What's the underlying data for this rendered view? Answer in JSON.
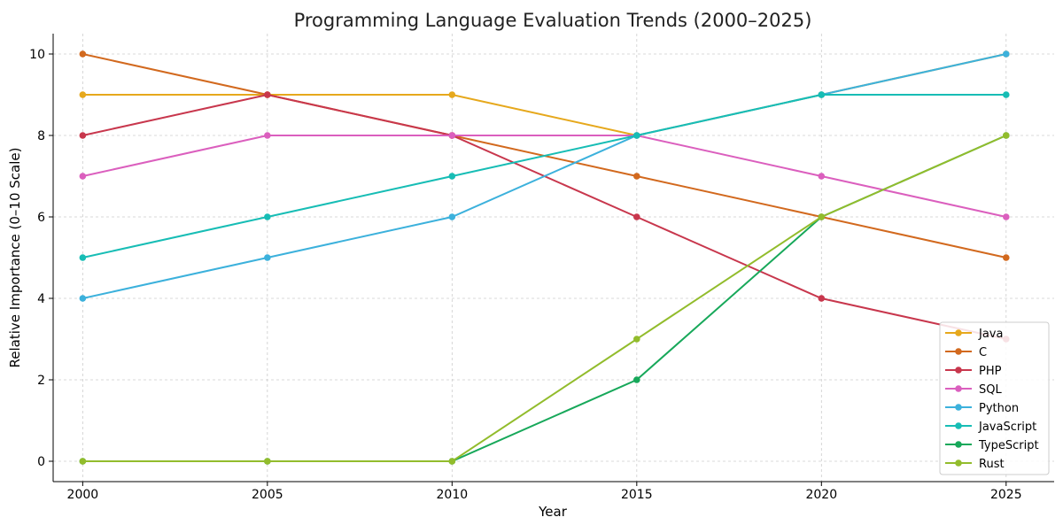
{
  "chart_data": {
    "type": "line",
    "title": "Programming Language Evaluation Trends (2000–2025)",
    "xlabel": "Year",
    "ylabel": "Relative Importance (0–10 Scale)",
    "x": [
      2000,
      2005,
      2010,
      2015,
      2020,
      2025
    ],
    "x_tick_labels": [
      "2000",
      "2005",
      "2010",
      "2015",
      "2020",
      "2025"
    ],
    "y_ticks": [
      0,
      2,
      4,
      6,
      8,
      10
    ],
    "y_tick_labels": [
      "0",
      "2",
      "4",
      "6",
      "8",
      "10"
    ],
    "xlim": [
      1999.2,
      2026.3
    ],
    "ylim": [
      -0.5,
      10.5
    ],
    "grid": true,
    "legend_position": "bottom-right",
    "series": [
      {
        "name": "Java",
        "color": "#e6a81c",
        "values": [
          9,
          9,
          9,
          8,
          9,
          10
        ]
      },
      {
        "name": "C",
        "color": "#d2691e",
        "values": [
          10,
          9,
          8,
          7,
          6,
          5
        ]
      },
      {
        "name": "PHP",
        "color": "#c8374d",
        "values": [
          8,
          9,
          8,
          6,
          4,
          3
        ]
      },
      {
        "name": "SQL",
        "color": "#db5fbe",
        "values": [
          7,
          8,
          8,
          8,
          7,
          6
        ]
      },
      {
        "name": "Python",
        "color": "#3cb1dc",
        "values": [
          4,
          5,
          6,
          8,
          9,
          10
        ]
      },
      {
        "name": "JavaScript",
        "color": "#17bdb5",
        "values": [
          5,
          6,
          7,
          8,
          9,
          9
        ]
      },
      {
        "name": "TypeScript",
        "color": "#17a85a",
        "values": [
          0,
          0,
          0,
          2,
          6,
          8
        ]
      },
      {
        "name": "Rust",
        "color": "#92bc2c",
        "values": [
          0,
          0,
          0,
          3,
          6,
          8
        ]
      }
    ]
  }
}
